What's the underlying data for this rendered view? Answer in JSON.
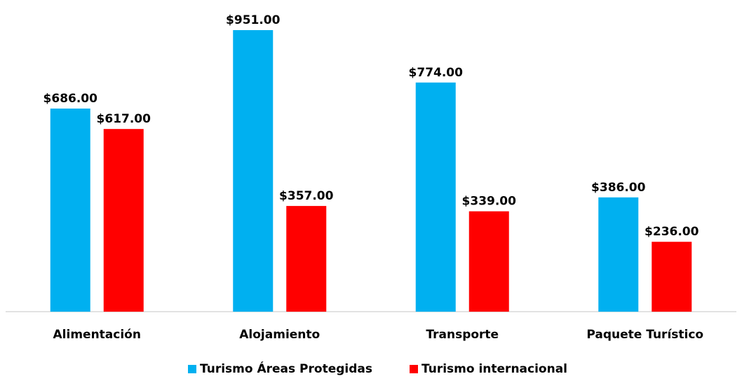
{
  "chart_data": {
    "type": "bar",
    "categories": [
      "Alimentación",
      "Alojamiento",
      "Transporte",
      "Paquete Turístico"
    ],
    "series": [
      {
        "name": "Turismo Áreas Protegidas",
        "color": "#00b0f0",
        "values": [
          686,
          951,
          774,
          386
        ],
        "value_labels": [
          "$686.00",
          "$951.00",
          "$774.00",
          "$386.00"
        ]
      },
      {
        "name": "Turismo internacional",
        "color": "#ff0000",
        "values": [
          617,
          357,
          339,
          236
        ],
        "value_labels": [
          "$617.00",
          "$357.00",
          "$339.00",
          "$236.00"
        ]
      }
    ],
    "legend": "bottom"
  }
}
